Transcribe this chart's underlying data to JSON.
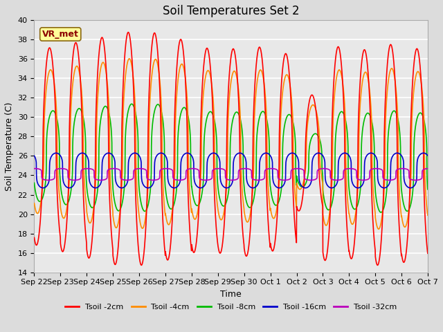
{
  "title": "Soil Temperatures Set 2",
  "xlabel": "Time",
  "ylabel": "Soil Temperature (C)",
  "ylim": [
    14,
    40
  ],
  "yticks": [
    14,
    16,
    18,
    20,
    22,
    24,
    26,
    28,
    30,
    32,
    34,
    36,
    38,
    40
  ],
  "annotation_text": "VR_met",
  "n_days": 15,
  "points_per_day": 144,
  "x_tick_labels": [
    "Sep 22",
    "Sep 23",
    "Sep 24",
    "Sep 25",
    "Sep 26",
    "Sep 27",
    "Sep 28",
    "Sep 29",
    "Sep 30",
    "Oct 1",
    "Oct 2",
    "Oct 3",
    "Oct 4",
    "Oct 5",
    "Oct 6",
    "Oct 7"
  ],
  "background_color": "#DCDCDC",
  "plot_bg_color": "#E8E8E8",
  "grid_color": "#FFFFFF",
  "title_fontsize": 12,
  "label_fontsize": 9,
  "tick_fontsize": 8,
  "series_colors": {
    "Tsoil -2cm": "#FF0000",
    "Tsoil -4cm": "#FF8C00",
    "Tsoil -8cm": "#00BB00",
    "Tsoil -16cm": "#0000CC",
    "Tsoil -32cm": "#BB00BB"
  },
  "legend_labels": [
    "Tsoil -2cm",
    "Tsoil -4cm",
    "Tsoil -8cm",
    "Tsoil -16cm",
    "Tsoil -32cm"
  ]
}
